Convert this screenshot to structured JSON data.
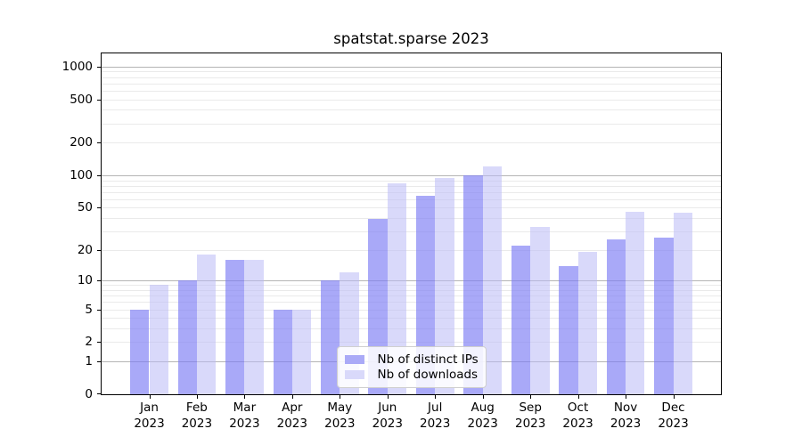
{
  "chart_data": {
    "type": "bar",
    "title": "spatstat.sparse 2023",
    "categories": [
      "Jan",
      "Feb",
      "Mar",
      "Apr",
      "May",
      "Jun",
      "Jul",
      "Aug",
      "Sep",
      "Oct",
      "Nov",
      "Dec"
    ],
    "year_label": "2023",
    "series": [
      {
        "name": "Nb of distinct IPs",
        "color": "rgba(124,124,244,0.66)",
        "swatch_color": "#aaaaf7",
        "values": [
          5,
          10,
          16,
          5,
          10,
          39,
          65,
          100,
          22,
          14,
          25,
          26
        ]
      },
      {
        "name": "Nb of downloads",
        "color": "rgba(186,186,246,0.55)",
        "swatch_color": "#d9d9fa",
        "values": [
          9,
          18,
          16,
          5,
          12,
          85,
          95,
          120,
          33,
          19,
          46,
          45
        ]
      }
    ],
    "xlabel": "",
    "ylabel": "",
    "y_axis": {
      "scale": "log10(value+1)",
      "ticks": [
        1000,
        500,
        200,
        100,
        50,
        20,
        10,
        5,
        2,
        1,
        0
      ],
      "top_value": 1316
    },
    "grid": {
      "major": [
        1,
        10,
        100,
        1000
      ],
      "minor": [
        2,
        3,
        4,
        5,
        6,
        7,
        8,
        9,
        20,
        30,
        40,
        50,
        60,
        70,
        80,
        90,
        200,
        300,
        400,
        500,
        600,
        700,
        800,
        900
      ]
    },
    "legend_position": "lower center",
    "colors": {
      "grid_major": "#b4b4b4",
      "grid_minor": "#eaeaea",
      "axis": "#000000"
    }
  }
}
